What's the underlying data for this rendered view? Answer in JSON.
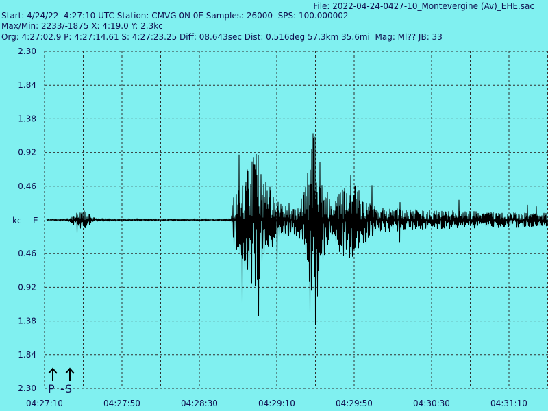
{
  "header": {
    "file": "File: 2022-04-24-0427-10_Montevergine (Av)_EHE.sac",
    "line1": "Start: 4/24/22  4:27:10 UTC Station: CMVG 0N 0E Samples: 26000  SPS: 100.000002",
    "line2": "Max/Min: 2233/-1875 X: 4:19.0 Y: 2.3kc",
    "line3": "Org: 4:27:02.9 P: 4:27:14.61 S: 4:27:23.25 Diff: 08.643sec Dist: 0.516deg 57.3km 35.6mi  Mag: Ml?? JB: 33"
  },
  "axis": {
    "y_labels_top": [
      "2.30",
      "1.84",
      "1.38",
      "0.92",
      "0.46"
    ],
    "unit": "kc",
    "channel": "E",
    "y_labels_bottom": [
      "0.46",
      "0.92",
      "1.38",
      "1.84",
      "2.30"
    ],
    "x_labels": [
      "04:27:10",
      "04:27:50",
      "04:28:30",
      "04:29:10",
      "04:29:50",
      "04:30:30",
      "04:31:10"
    ]
  },
  "markers": {
    "p": "P",
    "dash": "-",
    "s": "S"
  }
}
